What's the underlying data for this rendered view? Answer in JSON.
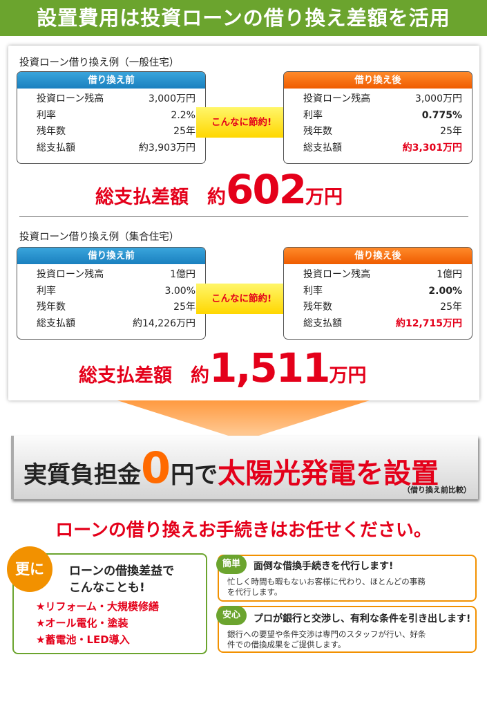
{
  "banner": "設置費用は投資ローンの借り換え差額を活用",
  "examples": [
    {
      "title": "投資ローン借り換え例（一般住宅）",
      "before": {
        "header": "借り換え前",
        "rows": [
          {
            "label": "投資ローン残高",
            "value": "3,000万円"
          },
          {
            "label": "利率",
            "value": "2.2%"
          },
          {
            "label": "残年数",
            "value": "25年"
          },
          {
            "label": "総支払額",
            "value": "約3,903万円"
          }
        ]
      },
      "arrow": "こんなに節約!",
      "after": {
        "header": "借り換え後",
        "rows": [
          {
            "label": "投資ローン残高",
            "value": "3,000万円"
          },
          {
            "label": "利率",
            "value": "0.775%"
          },
          {
            "label": "残年数",
            "value": "25年"
          },
          {
            "label": "総支払額",
            "value": "約3,301万円"
          }
        ]
      },
      "total": {
        "label": "総支払差額　約",
        "amount": "602",
        "unit": "万円"
      }
    },
    {
      "title": "投資ローン借り換え例（集合住宅）",
      "before": {
        "header": "借り換え前",
        "rows": [
          {
            "label": "投資ローン残高",
            "value": "1億円"
          },
          {
            "label": "利率",
            "value": "3.00%"
          },
          {
            "label": "残年数",
            "value": "25年"
          },
          {
            "label": "総支払額",
            "value": "約14,226万円"
          }
        ]
      },
      "arrow": "こんなに節約!",
      "after": {
        "header": "借り換え後",
        "rows": [
          {
            "label": "投資ローン残高",
            "value": "1億円"
          },
          {
            "label": "利率",
            "value": "2.00%"
          },
          {
            "label": "残年数",
            "value": "25年"
          },
          {
            "label": "総支払額",
            "value": "約12,715万円"
          }
        ]
      },
      "total": {
        "label": "総支払差額　約",
        "amount": "1,511",
        "unit": "万円"
      }
    }
  ],
  "bar": {
    "part1": "実質負担金",
    "zero": "0",
    "part2": "円で",
    "part3": "太陽光発電を設置",
    "note": "（借り換え前比較）"
  },
  "subhead": "ローンの借り換えお手続きはお任せください。",
  "sara": {
    "badge": "更に",
    "title_line1": "ローンの借換差益で",
    "title_line2": "こんなことも!",
    "items": [
      "★リフォーム・大規模修繕",
      "★オール電化・塗装",
      "★蓄電池・LED導入"
    ]
  },
  "cards": [
    {
      "badge": "簡単",
      "title": "面倒な借換手続きを代行します!",
      "body_line1": "忙しく時間も暇もないお客様に代わり、ほとんどの事務",
      "body_line2": "を代行します。"
    },
    {
      "badge": "安心",
      "title": "プロが銀行と交渉し、有利な条件を引き出します!",
      "body_line1": "銀行への要望や条件交渉は専門のスタッフが行い、好条",
      "body_line2": "件での借換成果をご提供します。"
    }
  ],
  "colors": {
    "green": "#6ba42e",
    "red": "#e4001a",
    "orange": "#f29100",
    "blue": "#1a80bf"
  }
}
